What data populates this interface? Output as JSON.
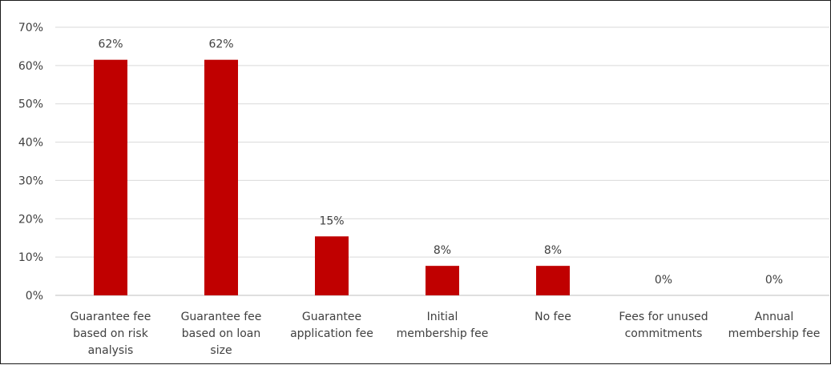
{
  "chart_data": {
    "type": "bar",
    "title": "",
    "xlabel": "",
    "ylabel": "",
    "ylim": [
      0,
      70
    ],
    "y_ticks": [
      "0%",
      "10%",
      "20%",
      "30%",
      "40%",
      "50%",
      "60%",
      "70%"
    ],
    "y_tick_values": [
      0,
      10,
      20,
      30,
      40,
      50,
      60,
      70
    ],
    "grid": true,
    "legend": "none",
    "categories": [
      [
        "Guarantee fee",
        "based on risk",
        "analysis"
      ],
      [
        "Guarantee fee",
        "based on loan",
        "size"
      ],
      [
        "Guarantee",
        "application fee"
      ],
      [
        "Initial",
        "membership fee"
      ],
      [
        "No fee"
      ],
      [
        "Fees for unused",
        "commitments"
      ],
      [
        "Annual",
        "membership fee"
      ]
    ],
    "values": [
      61.5,
      61.5,
      15.4,
      7.7,
      7.7,
      0,
      0
    ],
    "data_labels": [
      "62%",
      "62%",
      "15%",
      "8%",
      "8%",
      "0%",
      "0%"
    ],
    "bar_color": "#c00000"
  }
}
